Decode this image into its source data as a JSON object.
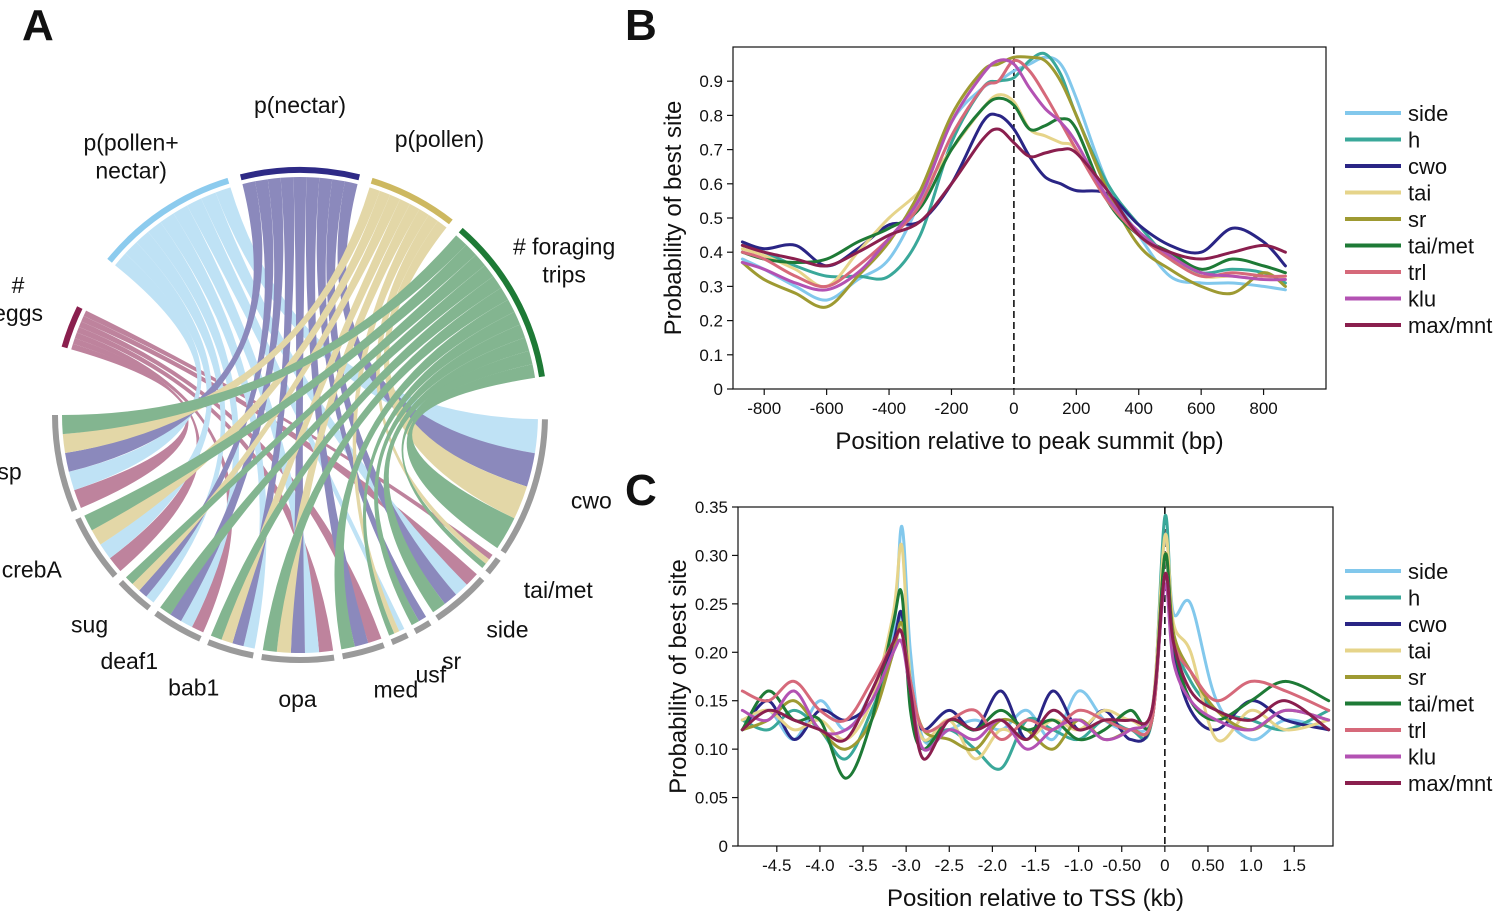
{
  "panels": {
    "a": "A",
    "b": "B",
    "c": "C"
  },
  "colors": {
    "side": "#82c8ec",
    "h": "#3aa89a",
    "cwo": "#2a2585",
    "tai": "#e6d48a",
    "sr": "#9e9a32",
    "tai/met": "#1e7a36",
    "trl": "#d6697a",
    "klu": "#b352b3",
    "max/mnt": "#8a1f4e",
    "p(pollen+nectar)": "#8ccbee",
    "p(nectar)": "#2e2a86",
    "p(pollen)": "#cdb860",
    "# foraging trips": "#1e7a36",
    "# eggs": "#8a1f4e"
  },
  "chart_data": [
    {
      "type": "chord",
      "panel": "A",
      "sources": [
        {
          "name": "# eggs",
          "label_lines": [
            "#",
            "eggs"
          ],
          "targets": [
            "usp",
            "crebA",
            "deaf1",
            "opa",
            "med",
            "side",
            "tai/met"
          ]
        },
        {
          "name": "p(pollen+nectar)",
          "label_lines": [
            "p(pollen+",
            "nectar)"
          ],
          "targets": [
            "usp",
            "crebA",
            "sug",
            "deaf1",
            "bab1",
            "opa",
            "usf",
            "side",
            "cwo"
          ]
        },
        {
          "name": "p(nectar)",
          "label_lines": [
            "p(nectar)"
          ],
          "targets": [
            "usp",
            "sug",
            "deaf1",
            "bab1",
            "opa",
            "med",
            "sr",
            "side",
            "cwo"
          ]
        },
        {
          "name": "p(pollen)",
          "label_lines": [
            "p(pollen)"
          ],
          "targets": [
            "usp",
            "crebA",
            "sug",
            "bab1",
            "opa",
            "usf",
            "tai/met",
            "cwo"
          ]
        },
        {
          "name": "# foraging trips",
          "label_lines": [
            "# foraging",
            "trips"
          ],
          "targets": [
            "usp",
            "crebA",
            "sug",
            "deaf1",
            "bab1",
            "opa",
            "med",
            "usf",
            "sr",
            "side",
            "tai/met",
            "cwo"
          ]
        }
      ],
      "genes": [
        "usp",
        "crebA",
        "sug",
        "deaf1",
        "bab1",
        "opa",
        "med",
        "usf",
        "sr",
        "side",
        "tai/met",
        "cwo"
      ]
    },
    {
      "type": "line",
      "panel": "B",
      "xlabel": "Position relative to peak summit (bp)",
      "ylabel": "Probability of best site",
      "xlim": [
        -900,
        1000
      ],
      "ylim": [
        0,
        1.0
      ],
      "xticks": [
        -800,
        -600,
        -400,
        -200,
        0,
        200,
        400,
        600,
        800
      ],
      "xtick_labels": [
        "-800",
        "-600",
        "-400",
        "-200",
        "0",
        "200",
        "400",
        "600",
        "800"
      ],
      "yticks": [
        0,
        0.1,
        0.2,
        0.3,
        0.4,
        0.5,
        0.6,
        0.7,
        0.8,
        0.9
      ],
      "ytick_labels": [
        "0",
        "0.1",
        "0.2",
        "0.3",
        "0.4",
        "0.5",
        "0.6",
        "0.7",
        "0.8",
        "0.9"
      ],
      "vline": 0,
      "x": [
        -870,
        -800,
        -700,
        -600,
        -500,
        -400,
        -300,
        -200,
        -100,
        -50,
        0,
        50,
        100,
        150,
        200,
        300,
        400,
        500,
        600,
        700,
        800,
        870
      ],
      "series": [
        {
          "name": "side",
          "values": [
            0.38,
            0.35,
            0.3,
            0.26,
            0.32,
            0.38,
            0.55,
            0.78,
            0.88,
            0.9,
            0.93,
            0.95,
            0.97,
            0.95,
            0.85,
            0.6,
            0.45,
            0.33,
            0.31,
            0.31,
            0.3,
            0.29
          ]
        },
        {
          "name": "h",
          "values": [
            0.42,
            0.4,
            0.36,
            0.33,
            0.33,
            0.33,
            0.45,
            0.72,
            0.88,
            0.9,
            0.91,
            0.96,
            0.98,
            0.92,
            0.8,
            0.6,
            0.48,
            0.38,
            0.34,
            0.35,
            0.34,
            0.31
          ]
        },
        {
          "name": "cwo",
          "values": [
            0.43,
            0.41,
            0.42,
            0.36,
            0.41,
            0.48,
            0.49,
            0.6,
            0.78,
            0.8,
            0.76,
            0.68,
            0.62,
            0.6,
            0.58,
            0.57,
            0.48,
            0.42,
            0.4,
            0.47,
            0.43,
            0.36
          ]
        },
        {
          "name": "tai",
          "values": [
            0.41,
            0.39,
            0.35,
            0.3,
            0.4,
            0.5,
            0.58,
            0.7,
            0.82,
            0.86,
            0.84,
            0.76,
            0.74,
            0.72,
            0.7,
            0.55,
            0.45,
            0.38,
            0.33,
            0.33,
            0.32,
            0.33
          ]
        },
        {
          "name": "sr",
          "values": [
            0.37,
            0.32,
            0.28,
            0.24,
            0.33,
            0.43,
            0.58,
            0.8,
            0.93,
            0.95,
            0.97,
            0.97,
            0.96,
            0.9,
            0.8,
            0.58,
            0.42,
            0.35,
            0.3,
            0.28,
            0.34,
            0.3
          ]
        },
        {
          "name": "tai/met",
          "values": [
            0.4,
            0.38,
            0.37,
            0.38,
            0.43,
            0.47,
            0.53,
            0.7,
            0.82,
            0.85,
            0.83,
            0.76,
            0.77,
            0.79,
            0.76,
            0.55,
            0.45,
            0.4,
            0.35,
            0.38,
            0.36,
            0.34
          ]
        },
        {
          "name": "trl",
          "values": [
            0.4,
            0.38,
            0.33,
            0.3,
            0.36,
            0.44,
            0.54,
            0.74,
            0.88,
            0.9,
            0.96,
            0.93,
            0.86,
            0.78,
            0.7,
            0.55,
            0.45,
            0.38,
            0.33,
            0.34,
            0.33,
            0.33
          ]
        },
        {
          "name": "klu",
          "values": [
            0.37,
            0.35,
            0.31,
            0.29,
            0.34,
            0.44,
            0.56,
            0.78,
            0.92,
            0.96,
            0.95,
            0.88,
            0.82,
            0.78,
            0.72,
            0.56,
            0.46,
            0.39,
            0.34,
            0.33,
            0.32,
            0.32
          ]
        },
        {
          "name": "max/mnt",
          "values": [
            0.42,
            0.4,
            0.38,
            0.36,
            0.4,
            0.45,
            0.49,
            0.6,
            0.73,
            0.76,
            0.72,
            0.68,
            0.69,
            0.7,
            0.69,
            0.58,
            0.45,
            0.4,
            0.38,
            0.4,
            0.42,
            0.4
          ]
        }
      ]
    },
    {
      "type": "line",
      "panel": "C",
      "xlabel": "Position relative to TSS (kb)",
      "ylabel": "Probability of best site",
      "xlim": [
        -4.95,
        1.95
      ],
      "ylim": [
        0,
        0.35
      ],
      "xticks": [
        -4.5,
        -4.0,
        -3.5,
        -3.0,
        -2.5,
        -2.0,
        -1.5,
        -1.0,
        -0.5,
        0,
        0.5,
        1.0,
        1.5
      ],
      "xtick_labels": [
        "-4.5",
        "-4.0",
        "-3.5",
        "-3.0",
        "-2.5",
        "-2.0",
        "-1.5",
        "-1.0",
        "-0.50",
        "0",
        "0.50",
        "1.0",
        "1.5"
      ],
      "yticks": [
        0,
        0.05,
        0.1,
        0.15,
        0.2,
        0.25,
        0.3,
        0.35
      ],
      "ytick_labels": [
        "0",
        "0.05",
        "0.10",
        "0.15",
        "0.20",
        "0.25",
        "0.30",
        "0.35"
      ],
      "vline": 0,
      "x": [
        -4.9,
        -4.6,
        -4.3,
        -4.0,
        -3.7,
        -3.4,
        -3.15,
        -3.05,
        -2.95,
        -2.8,
        -2.5,
        -2.2,
        -1.9,
        -1.6,
        -1.3,
        -1.0,
        -0.7,
        -0.4,
        -0.15,
        0,
        0.1,
        0.3,
        0.6,
        1.0,
        1.4,
        1.9
      ],
      "series": [
        {
          "name": "side",
          "values": [
            0.12,
            0.14,
            0.11,
            0.15,
            0.12,
            0.16,
            0.22,
            0.33,
            0.2,
            0.11,
            0.12,
            0.13,
            0.12,
            0.14,
            0.11,
            0.16,
            0.13,
            0.12,
            0.14,
            0.32,
            0.24,
            0.25,
            0.15,
            0.11,
            0.13,
            0.12
          ]
        },
        {
          "name": "h",
          "values": [
            0.13,
            0.12,
            0.14,
            0.12,
            0.09,
            0.14,
            0.2,
            0.24,
            0.16,
            0.11,
            0.12,
            0.1,
            0.08,
            0.13,
            0.12,
            0.11,
            0.13,
            0.12,
            0.13,
            0.34,
            0.22,
            0.17,
            0.14,
            0.13,
            0.12,
            0.14
          ]
        },
        {
          "name": "cwo",
          "values": [
            0.12,
            0.15,
            0.11,
            0.14,
            0.13,
            0.15,
            0.21,
            0.24,
            0.15,
            0.12,
            0.14,
            0.12,
            0.16,
            0.11,
            0.16,
            0.12,
            0.14,
            0.11,
            0.13,
            0.28,
            0.2,
            0.14,
            0.12,
            0.15,
            0.13,
            0.12
          ]
        },
        {
          "name": "tai",
          "values": [
            0.13,
            0.14,
            0.12,
            0.13,
            0.11,
            0.15,
            0.24,
            0.31,
            0.17,
            0.11,
            0.13,
            0.09,
            0.12,
            0.11,
            0.13,
            0.12,
            0.14,
            0.13,
            0.14,
            0.32,
            0.23,
            0.2,
            0.11,
            0.14,
            0.12,
            0.13
          ]
        },
        {
          "name": "sr",
          "values": [
            0.12,
            0.13,
            0.15,
            0.12,
            0.1,
            0.13,
            0.2,
            0.23,
            0.17,
            0.12,
            0.11,
            0.1,
            0.13,
            0.12,
            0.1,
            0.13,
            0.11,
            0.12,
            0.13,
            0.3,
            0.22,
            0.18,
            0.14,
            0.12,
            0.14,
            0.13
          ]
        },
        {
          "name": "tai/met",
          "values": [
            0.12,
            0.16,
            0.13,
            0.13,
            0.07,
            0.13,
            0.23,
            0.26,
            0.14,
            0.1,
            0.13,
            0.12,
            0.14,
            0.12,
            0.13,
            0.11,
            0.12,
            0.14,
            0.13,
            0.3,
            0.21,
            0.15,
            0.13,
            0.15,
            0.17,
            0.15
          ]
        },
        {
          "name": "trl",
          "values": [
            0.16,
            0.15,
            0.17,
            0.14,
            0.13,
            0.17,
            0.21,
            0.22,
            0.17,
            0.12,
            0.13,
            0.14,
            0.11,
            0.13,
            0.12,
            0.14,
            0.13,
            0.12,
            0.13,
            0.28,
            0.21,
            0.18,
            0.15,
            0.17,
            0.16,
            0.14
          ]
        },
        {
          "name": "klu",
          "values": [
            0.14,
            0.13,
            0.16,
            0.12,
            0.12,
            0.15,
            0.2,
            0.21,
            0.16,
            0.1,
            0.12,
            0.11,
            0.13,
            0.1,
            0.12,
            0.13,
            0.11,
            0.12,
            0.14,
            0.27,
            0.19,
            0.15,
            0.13,
            0.12,
            0.14,
            0.13
          ]
        },
        {
          "name": "max/mnt",
          "values": [
            0.12,
            0.14,
            0.13,
            0.12,
            0.11,
            0.16,
            0.21,
            0.22,
            0.16,
            0.09,
            0.13,
            0.12,
            0.13,
            0.11,
            0.14,
            0.12,
            0.13,
            0.13,
            0.14,
            0.28,
            0.21,
            0.16,
            0.14,
            0.13,
            0.15,
            0.12
          ]
        }
      ]
    }
  ]
}
